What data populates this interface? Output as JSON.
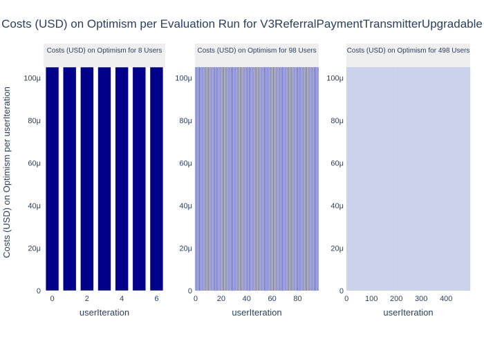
{
  "title": "Costs (USD) on Optimism per Evaluation Run for V3ReferralPaymentTransmitterUpgradable",
  "ylabel": "Costs (USD) on Optimism per userIteration",
  "chart_data": [
    {
      "type": "bar",
      "title": "Costs (USD) on Optimism for 8 Users",
      "xlabel": "userIteration",
      "n_bars": 7,
      "x": [
        0,
        1,
        2,
        3,
        4,
        5,
        6
      ],
      "value": 0.000105,
      "ylim": [
        0,
        0.000105
      ],
      "xlim": [
        -0.5,
        6.5
      ],
      "x_ticks": [
        0,
        2,
        4,
        6
      ],
      "x_tick_labels": [
        "0",
        "2",
        "4",
        "6"
      ],
      "y_ticks": [
        0,
        2e-05,
        4e-05,
        6e-05,
        8e-05,
        0.0001
      ],
      "y_tick_labels": [
        "0",
        "20μ",
        "40μ",
        "60μ",
        "80μ",
        "100μ"
      ],
      "color": "#00008b",
      "gap": 0.25
    },
    {
      "type": "bar",
      "title": "Costs (USD) on Optimism for 98 Users",
      "xlabel": "userIteration",
      "n_bars": 97,
      "x_range": [
        0,
        96
      ],
      "value": 0.000105,
      "ylim": [
        0,
        0.000105
      ],
      "xlim": [
        -0.5,
        96.5
      ],
      "x_ticks": [
        0,
        20,
        40,
        60,
        80
      ],
      "x_tick_labels": [
        "0",
        "20",
        "40",
        "60",
        "80"
      ],
      "y_ticks": [
        0,
        2e-05,
        4e-05,
        6e-05,
        8e-05,
        0.0001
      ],
      "y_tick_labels": [
        "0",
        "20μ",
        "40μ",
        "60μ",
        "80μ",
        "100μ"
      ],
      "color": "#4a4fb0",
      "gap": 0.45
    },
    {
      "type": "bar",
      "title": "Costs (USD) on Optimism for 498 Users",
      "xlabel": "userIteration",
      "n_bars": 497,
      "x_range": [
        0,
        496
      ],
      "value": 0.000105,
      "ylim": [
        0,
        0.000105
      ],
      "xlim": [
        -0.5,
        496.5
      ],
      "x_ticks": [
        0,
        100,
        200,
        300,
        400
      ],
      "x_tick_labels": [
        "0",
        "100",
        "200",
        "300",
        "400"
      ],
      "y_ticks": [
        0,
        2e-05,
        4e-05,
        6e-05,
        8e-05,
        0.0001
      ],
      "y_tick_labels": [
        "0",
        "20μ",
        "40μ",
        "60μ",
        "80μ",
        "100μ"
      ],
      "color": "#c7cfea",
      "gap": 0
    }
  ]
}
